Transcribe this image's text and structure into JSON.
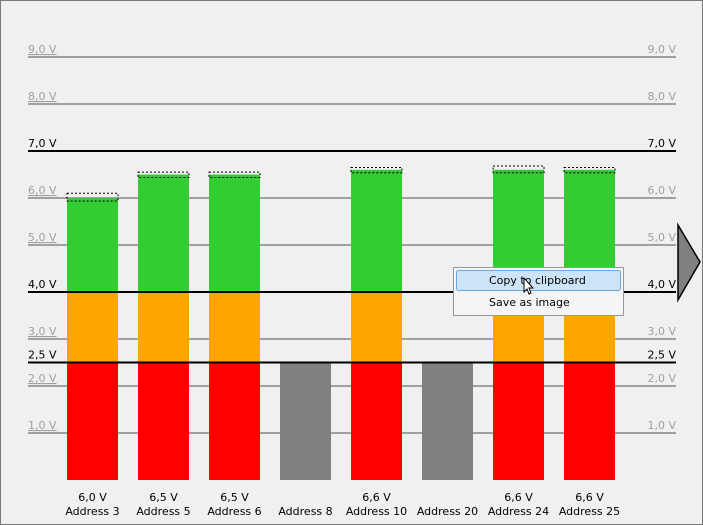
{
  "chart_data": {
    "type": "bar",
    "categories": [
      "Address 3",
      "Address 5",
      "Address 6",
      "Address 8",
      "Address 10",
      "Address 20",
      "Address 24",
      "Address 25"
    ],
    "values": [
      6.0,
      6.5,
      6.5,
      null,
      6.6,
      null,
      6.6,
      6.6
    ],
    "value_labels": [
      "6,0 V",
      "6,5 V",
      "6,5 V",
      null,
      "6,6 V",
      null,
      "6,6 V",
      "6,6 V"
    ],
    "max": [
      6.1,
      6.55,
      6.55,
      null,
      6.65,
      null,
      6.68,
      6.65
    ],
    "ylim": [
      0,
      9
    ],
    "yticks": [
      {
        "value": 1,
        "label": "1,0 V"
      },
      {
        "value": 2,
        "label": "2,0 V"
      },
      {
        "value": 3,
        "label": "3,0 V"
      },
      {
        "value": 5,
        "label": "5,0 V"
      },
      {
        "value": 6,
        "label": "6,0 V"
      },
      {
        "value": 8,
        "label": "8,0 V"
      },
      {
        "value": 9,
        "label": "9,0 V"
      }
    ],
    "thresholds": [
      {
        "value": 2.5,
        "label": "2,5 V"
      },
      {
        "value": 4,
        "label": "4,0 V"
      },
      {
        "value": 7,
        "label": "7,0 V"
      }
    ],
    "colors": {
      "low": "#ff0000",
      "mid": "#ffa500",
      "high": "#33cc33",
      "inactive": "#808080",
      "grid": "#a0a0a0",
      "threshold": "#000000"
    },
    "grid": true
  },
  "context_menu": {
    "items": [
      "Copy to clipboard",
      "Save as image"
    ]
  }
}
